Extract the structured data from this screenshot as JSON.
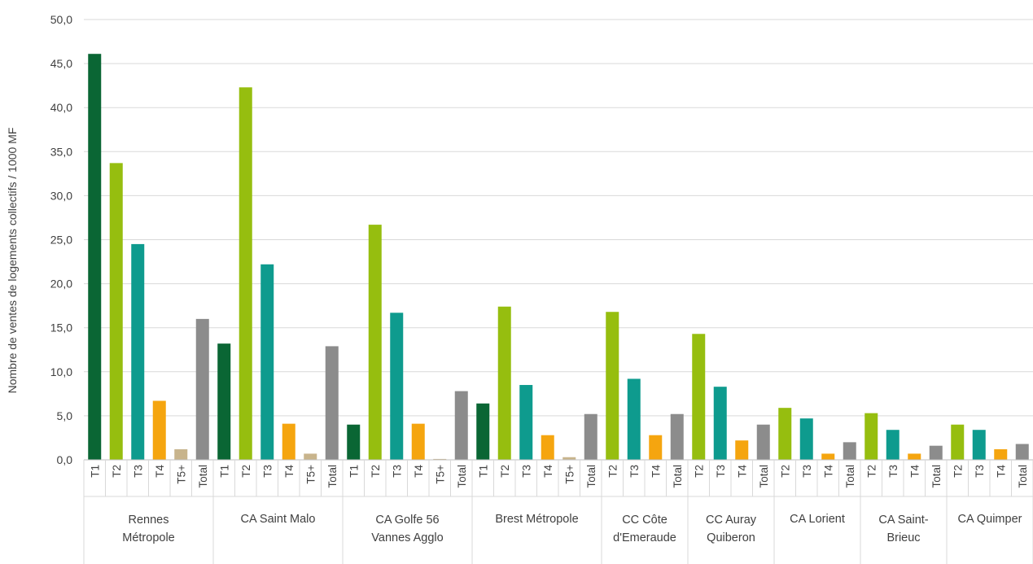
{
  "chart_data": {
    "type": "bar",
    "ylabel": "Nombre de ventes de logements collectifs / 1000 MF",
    "ylim": [
      0,
      50
    ],
    "yticks": [
      "0,0",
      "5,0",
      "10,0",
      "15,0",
      "20,0",
      "25,0",
      "30,0",
      "35,0",
      "40,0",
      "45,0",
      "50,0"
    ],
    "grid": true,
    "colors": {
      "T1": "#0a6634",
      "T2": "#96be0f",
      "T3": "#0e9b8e",
      "T4": "#f5a50f",
      "T5+": "#c8b48c",
      "Total": "#8c8c8c"
    },
    "groups": [
      {
        "name": [
          "Rennes",
          "Métropole"
        ],
        "bars": [
          {
            "label": "T1",
            "value": 46.1
          },
          {
            "label": "T2",
            "value": 33.7
          },
          {
            "label": "T3",
            "value": 24.5
          },
          {
            "label": "T4",
            "value": 6.7
          },
          {
            "label": "T5+",
            "value": 1.2
          },
          {
            "label": "Total",
            "value": 16.0
          }
        ]
      },
      {
        "name": [
          "CA Saint Malo"
        ],
        "bars": [
          {
            "label": "T1",
            "value": 13.2
          },
          {
            "label": "T2",
            "value": 42.3
          },
          {
            "label": "T3",
            "value": 22.2
          },
          {
            "label": "T4",
            "value": 4.1
          },
          {
            "label": "T5+",
            "value": 0.7
          },
          {
            "label": "Total",
            "value": 12.9
          }
        ]
      },
      {
        "name": [
          "CA Golfe 56",
          "Vannes Agglo"
        ],
        "bars": [
          {
            "label": "T1",
            "value": 4.0
          },
          {
            "label": "T2",
            "value": 26.7
          },
          {
            "label": "T3",
            "value": 16.7
          },
          {
            "label": "T4",
            "value": 4.1
          },
          {
            "label": "T5+",
            "value": 0.1
          },
          {
            "label": "Total",
            "value": 7.8
          }
        ]
      },
      {
        "name": [
          "Brest Métropole"
        ],
        "bars": [
          {
            "label": "T1",
            "value": 6.4
          },
          {
            "label": "T2",
            "value": 17.4
          },
          {
            "label": "T3",
            "value": 8.5
          },
          {
            "label": "T4",
            "value": 2.8
          },
          {
            "label": "T5+",
            "value": 0.3
          },
          {
            "label": "Total",
            "value": 5.2
          }
        ]
      },
      {
        "name": [
          "CC Côte",
          "d'Emeraude"
        ],
        "bars": [
          {
            "label": "T2",
            "value": 16.8
          },
          {
            "label": "T3",
            "value": 9.2
          },
          {
            "label": "T4",
            "value": 2.8
          },
          {
            "label": "Total",
            "value": 5.2
          }
        ]
      },
      {
        "name": [
          "CC Auray",
          "Quiberon"
        ],
        "bars": [
          {
            "label": "T2",
            "value": 14.3
          },
          {
            "label": "T3",
            "value": 8.3
          },
          {
            "label": "T4",
            "value": 2.2
          },
          {
            "label": "Total",
            "value": 4.0
          }
        ]
      },
      {
        "name": [
          "CA Lorient"
        ],
        "bars": [
          {
            "label": "T2",
            "value": 5.9
          },
          {
            "label": "T3",
            "value": 4.7
          },
          {
            "label": "T4",
            "value": 0.7
          },
          {
            "label": "Total",
            "value": 2.0
          }
        ]
      },
      {
        "name": [
          "CA Saint-",
          "Brieuc"
        ],
        "bars": [
          {
            "label": "T2",
            "value": 5.3
          },
          {
            "label": "T3",
            "value": 3.4
          },
          {
            "label": "T4",
            "value": 0.7
          },
          {
            "label": "Total",
            "value": 1.6
          }
        ]
      },
      {
        "name": [
          "CA Quimper"
        ],
        "bars": [
          {
            "label": "T2",
            "value": 4.0
          },
          {
            "label": "T3",
            "value": 3.4
          },
          {
            "label": "T4",
            "value": 1.2
          },
          {
            "label": "Total",
            "value": 1.8
          }
        ]
      }
    ]
  }
}
